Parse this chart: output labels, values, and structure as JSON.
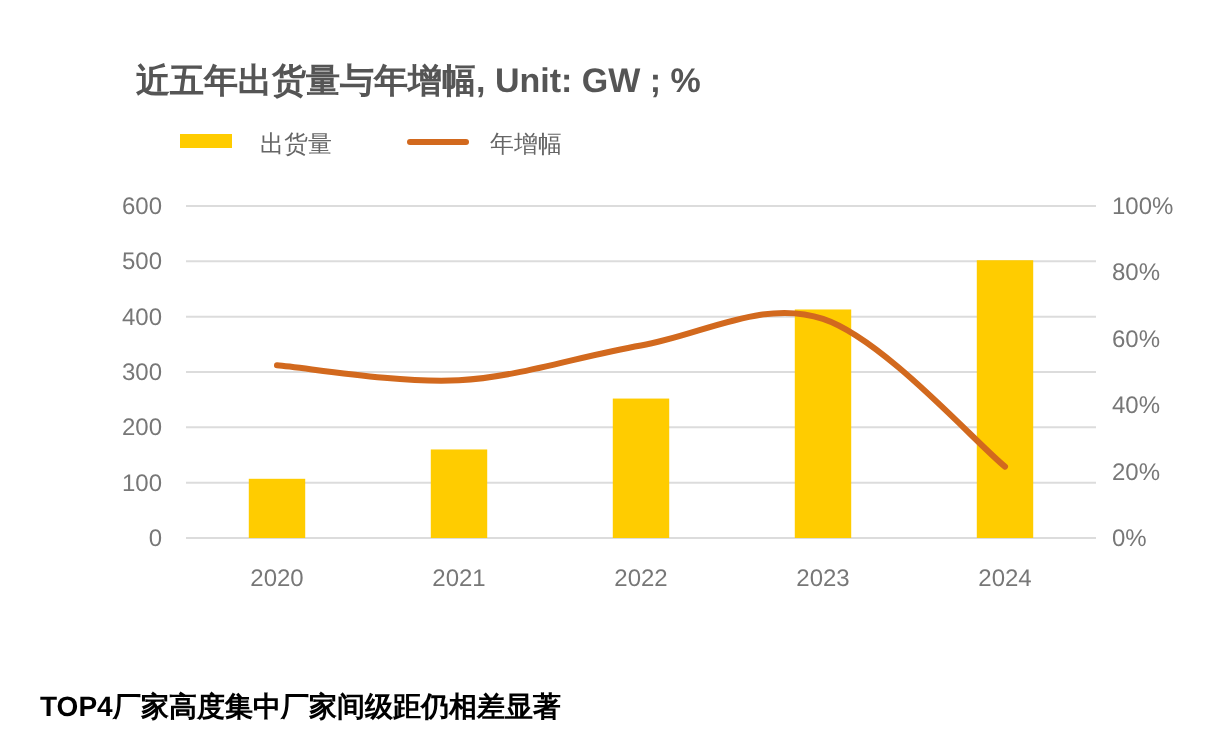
{
  "chart_data": {
    "type": "bar",
    "title": "近五年出货量与年增幅, Unit: GW ; %",
    "categories": [
      "2020",
      "2021",
      "2022",
      "2023",
      "2024"
    ],
    "series": [
      {
        "name": "出货量",
        "color": "#ffcc00",
        "values": [
          107,
          160,
          252,
          413,
          502
        ]
      },
      {
        "name": "年增幅",
        "type": "line",
        "axis": "y2",
        "color": "#d2691e",
        "values": [
          52,
          47.5,
          58,
          66,
          21.5
        ]
      }
    ],
    "ylim": [
      0,
      600
    ],
    "yticks": [
      0,
      100,
      200,
      300,
      400,
      500,
      600
    ],
    "y2lim": [
      0,
      100
    ],
    "y2ticks": [
      {
        "value": 0,
        "label": "0%"
      },
      {
        "value": 20,
        "label": "20%"
      },
      {
        "value": 40,
        "label": "40%"
      },
      {
        "value": 60,
        "label": "60%"
      },
      {
        "value": 80,
        "label": "80%"
      },
      {
        "value": 100,
        "label": "100%"
      }
    ],
    "grid": "y",
    "legend": "top left",
    "annotations": [
      "TOP4厂家高度集中厂家间级距仍相差显著"
    ]
  }
}
